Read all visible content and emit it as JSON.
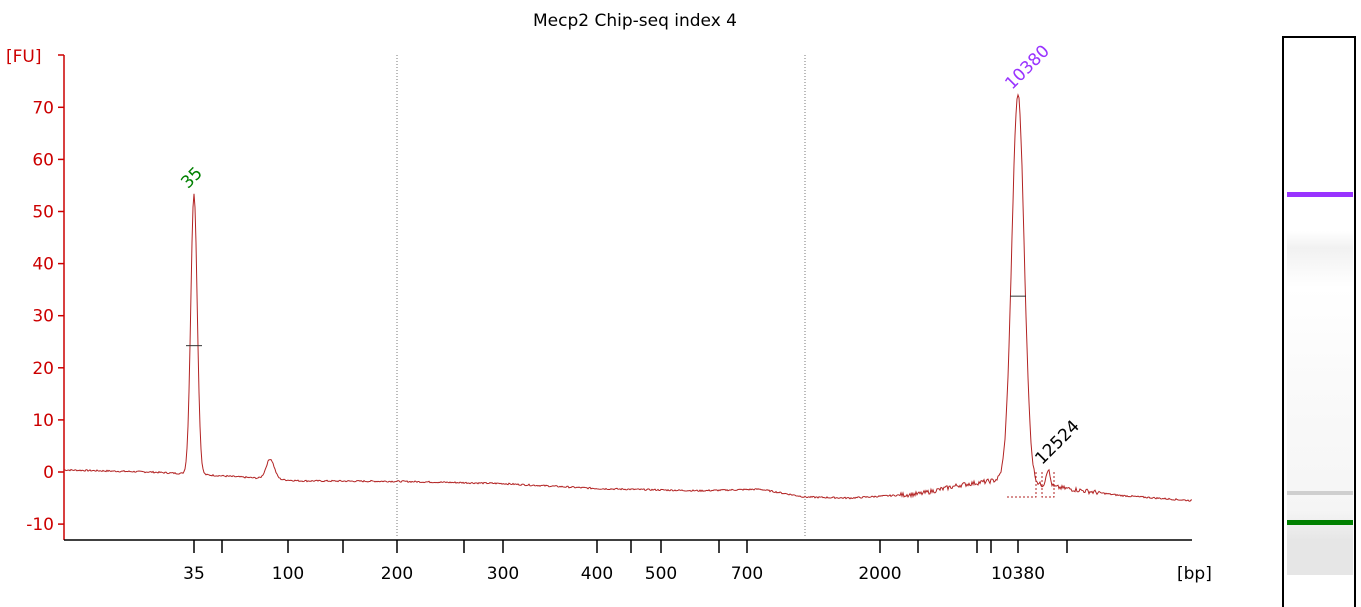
{
  "colors": {
    "axis": "#cc0000",
    "trace": "#b22222",
    "peak_label_lower": "#008000",
    "peak_label_upper": "#9933ff",
    "peak_label_other": "#000000",
    "gel_band_upper": "#9933ff",
    "gel_band_lower": "#008000"
  },
  "chart_data": {
    "type": "line",
    "title": "Mecp2 Chip-seq  index 4",
    "ylabel": "[FU]",
    "xlabel": "[bp]",
    "ylim": [
      -14,
      80
    ],
    "yticks": [
      -10,
      0,
      10,
      20,
      30,
      40,
      50,
      60,
      70
    ],
    "x_scale": "ladder (bp, non-linear, migration-time based)",
    "x_tick_labels": [
      "35",
      "100",
      "200",
      "300",
      "400",
      "500",
      "700",
      "2000",
      "10380"
    ],
    "x_ticks_unlabeled": 9,
    "grid": "dotted vertical lines at 200 bp and 1000 bp",
    "series": [
      {
        "values_note": "electropherogram fluorescence trace (FU)",
        "peaks": [
          {
            "label": "35",
            "size_bp": 35,
            "height_fu": 53.5
          },
          {
            "size_bp": 82,
            "height_fu": 2.5
          },
          {
            "label": "10380",
            "size_bp": 10380,
            "height_fu": 72.5
          },
          {
            "label": "12524",
            "size_bp": 12524,
            "height_fu": 0.5
          }
        ]
      }
    ],
    "gel_lane": {
      "bands": [
        {
          "label": "10380",
          "color": "#9933ff"
        },
        {
          "label": "35",
          "color": "#008000"
        }
      ]
    }
  }
}
